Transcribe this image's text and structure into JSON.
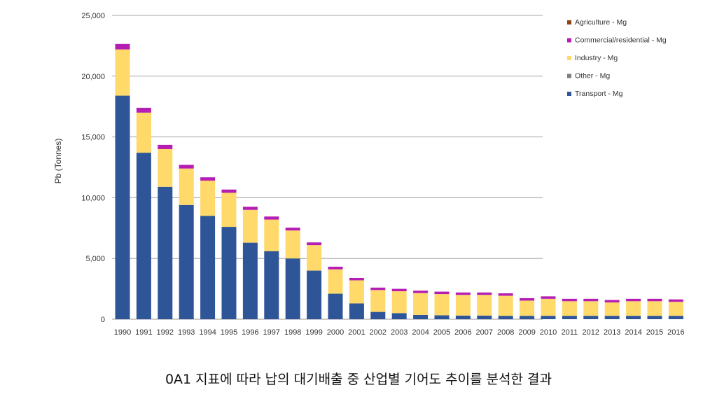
{
  "caption": "0A1 지표에 따라 납의 대기배출 중 산업별 기어도 추이를 분석한 결과",
  "chart_data": {
    "type": "bar",
    "stacked": true,
    "ylabel": "Pb (Tonnes)",
    "xlabel": "",
    "ylim": [
      0,
      25000
    ],
    "yticks": [
      0,
      5000,
      10000,
      15000,
      20000,
      25000
    ],
    "ytick_labels": [
      "0",
      "5,000",
      "10,000",
      "15,000",
      "20,000",
      "25,000"
    ],
    "grid": true,
    "legend_position": "top-right",
    "categories": [
      "1990",
      "1991",
      "1992",
      "1993",
      "1994",
      "1995",
      "1996",
      "1997",
      "1998",
      "1999",
      "2000",
      "2001",
      "2002",
      "2003",
      "2004",
      "2005",
      "2006",
      "2007",
      "2008",
      "2009",
      "2010",
      "2011",
      "2012",
      "2013",
      "2014",
      "2015",
      "2016"
    ],
    "series": [
      {
        "name": "Transport - Mg",
        "color": "#2E5597",
        "values": [
          18400,
          13700,
          10900,
          9400,
          8500,
          7600,
          6300,
          5600,
          5000,
          4000,
          2100,
          1300,
          600,
          500,
          350,
          320,
          300,
          300,
          280,
          280,
          280,
          280,
          280,
          280,
          280,
          280,
          280
        ]
      },
      {
        "name": "Other - Mg",
        "color": "#7F7F7F",
        "values": [
          0,
          0,
          0,
          0,
          0,
          0,
          0,
          0,
          0,
          0,
          0,
          0,
          0,
          0,
          0,
          0,
          0,
          0,
          0,
          0,
          0,
          0,
          0,
          0,
          0,
          0,
          0
        ]
      },
      {
        "name": "Industry - Mg",
        "color": "#FFD96A",
        "values": [
          3800,
          3300,
          3100,
          3000,
          2900,
          2800,
          2700,
          2600,
          2300,
          2100,
          2000,
          1900,
          1800,
          1800,
          1800,
          1750,
          1700,
          1700,
          1650,
          1250,
          1400,
          1200,
          1200,
          1100,
          1200,
          1200,
          1150
        ]
      },
      {
        "name": "Commercial/residential - Mg",
        "color": "#B61EB3",
        "values": [
          450,
          400,
          350,
          300,
          280,
          270,
          250,
          250,
          230,
          220,
          220,
          200,
          200,
          200,
          200,
          200,
          200,
          200,
          200,
          200,
          200,
          200,
          200,
          200,
          200,
          200,
          200
        ]
      },
      {
        "name": "Agriculture - Mg",
        "color": "#8B4513",
        "values": [
          0,
          0,
          0,
          0,
          0,
          0,
          0,
          0,
          0,
          0,
          0,
          0,
          0,
          0,
          0,
          0,
          0,
          0,
          0,
          0,
          0,
          0,
          0,
          0,
          0,
          0,
          0
        ]
      }
    ],
    "legend_order": [
      "Agriculture - Mg",
      "Commercial/residential - Mg",
      "Industry - Mg",
      "Other - Mg",
      "Transport - Mg"
    ]
  }
}
